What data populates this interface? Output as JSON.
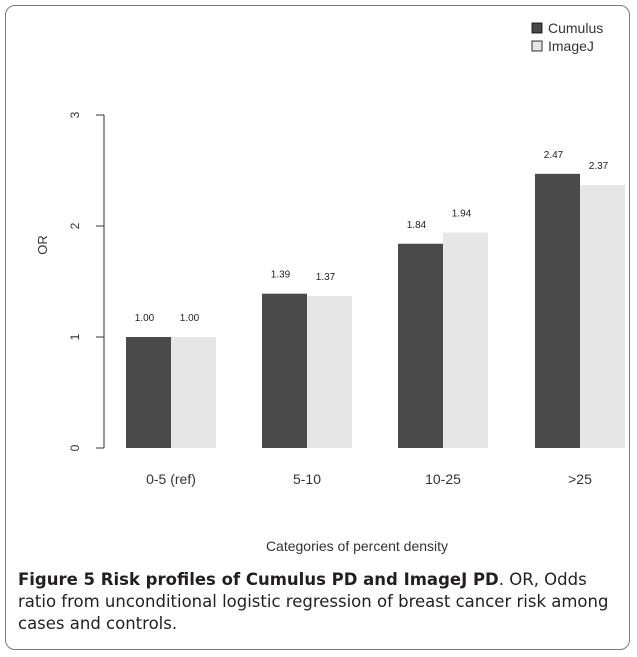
{
  "chart_data": {
    "type": "bar",
    "categories": [
      "0-5 (ref)",
      "5-10",
      "10-25",
      ">25"
    ],
    "series": [
      {
        "name": "Cumulus",
        "values": [
          1.0,
          1.39,
          1.84,
          2.47
        ],
        "labels": [
          "1.00",
          "1.39",
          "1.84",
          "2.47"
        ],
        "color": "#4a4a4a"
      },
      {
        "name": "ImageJ",
        "values": [
          1.0,
          1.37,
          1.94,
          2.37
        ],
        "labels": [
          "1.00",
          "1.37",
          "1.94",
          "2.37"
        ],
        "color": "#e6e6e6"
      }
    ],
    "xlabel": "Categories of percent density",
    "ylabel": "OR",
    "ylim": [
      0,
      3
    ],
    "yticks": [
      0,
      1,
      2,
      3
    ],
    "grid": false,
    "legend_position": "top-right"
  },
  "caption": {
    "title": "Figure 5 Risk profiles of Cumulus PD and ImageJ PD",
    "body": ". OR, Odds ratio from unconditional logistic regression of breast cancer risk among cases and controls."
  }
}
